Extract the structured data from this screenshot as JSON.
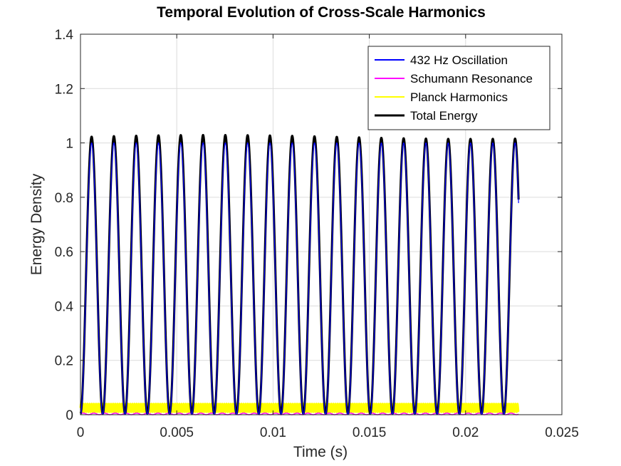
{
  "chart_data": {
    "type": "line",
    "title": "Temporal Evolution of Cross-Scale Harmonics",
    "xlabel": "Time (s)",
    "ylabel": "Energy Density",
    "xlim": [
      0,
      0.025
    ],
    "ylim": [
      0,
      1.4
    ],
    "x_ticks": [
      0,
      0.005,
      0.01,
      0.015,
      0.02,
      0.025
    ],
    "x_tick_labels": [
      "0",
      "0.005",
      "0.01",
      "0.015",
      "0.02",
      "0.025"
    ],
    "y_ticks": [
      0,
      0.2,
      0.4,
      0.6,
      0.8,
      1.0,
      1.2,
      1.4
    ],
    "y_tick_labels": [
      "0",
      "0.2",
      "0.4",
      "0.6",
      "0.8",
      "1",
      "1.2",
      "1.4"
    ],
    "grid": true,
    "legend_position": "top-right",
    "time_range": [
      0,
      0.02275
    ],
    "series": [
      {
        "name": "432 Hz Oscillation",
        "color": "#0000ff",
        "function": "sin^2(2*pi*432*t)",
        "frequency_hz": 432,
        "amplitude": 1.0
      },
      {
        "name": "Schumann Resonance",
        "color": "#ff00ff",
        "function": "small near-zero oscillation",
        "amplitude": 0.01
      },
      {
        "name": "Planck Harmonics",
        "color": "#ffff00",
        "function": "rapid oscillation around 0.025",
        "center": 0.025,
        "amplitude": 0.015
      },
      {
        "name": "Total Energy",
        "color": "#000000",
        "function": "sum of components",
        "peak_range": [
          1.02,
          1.05
        ]
      }
    ]
  }
}
